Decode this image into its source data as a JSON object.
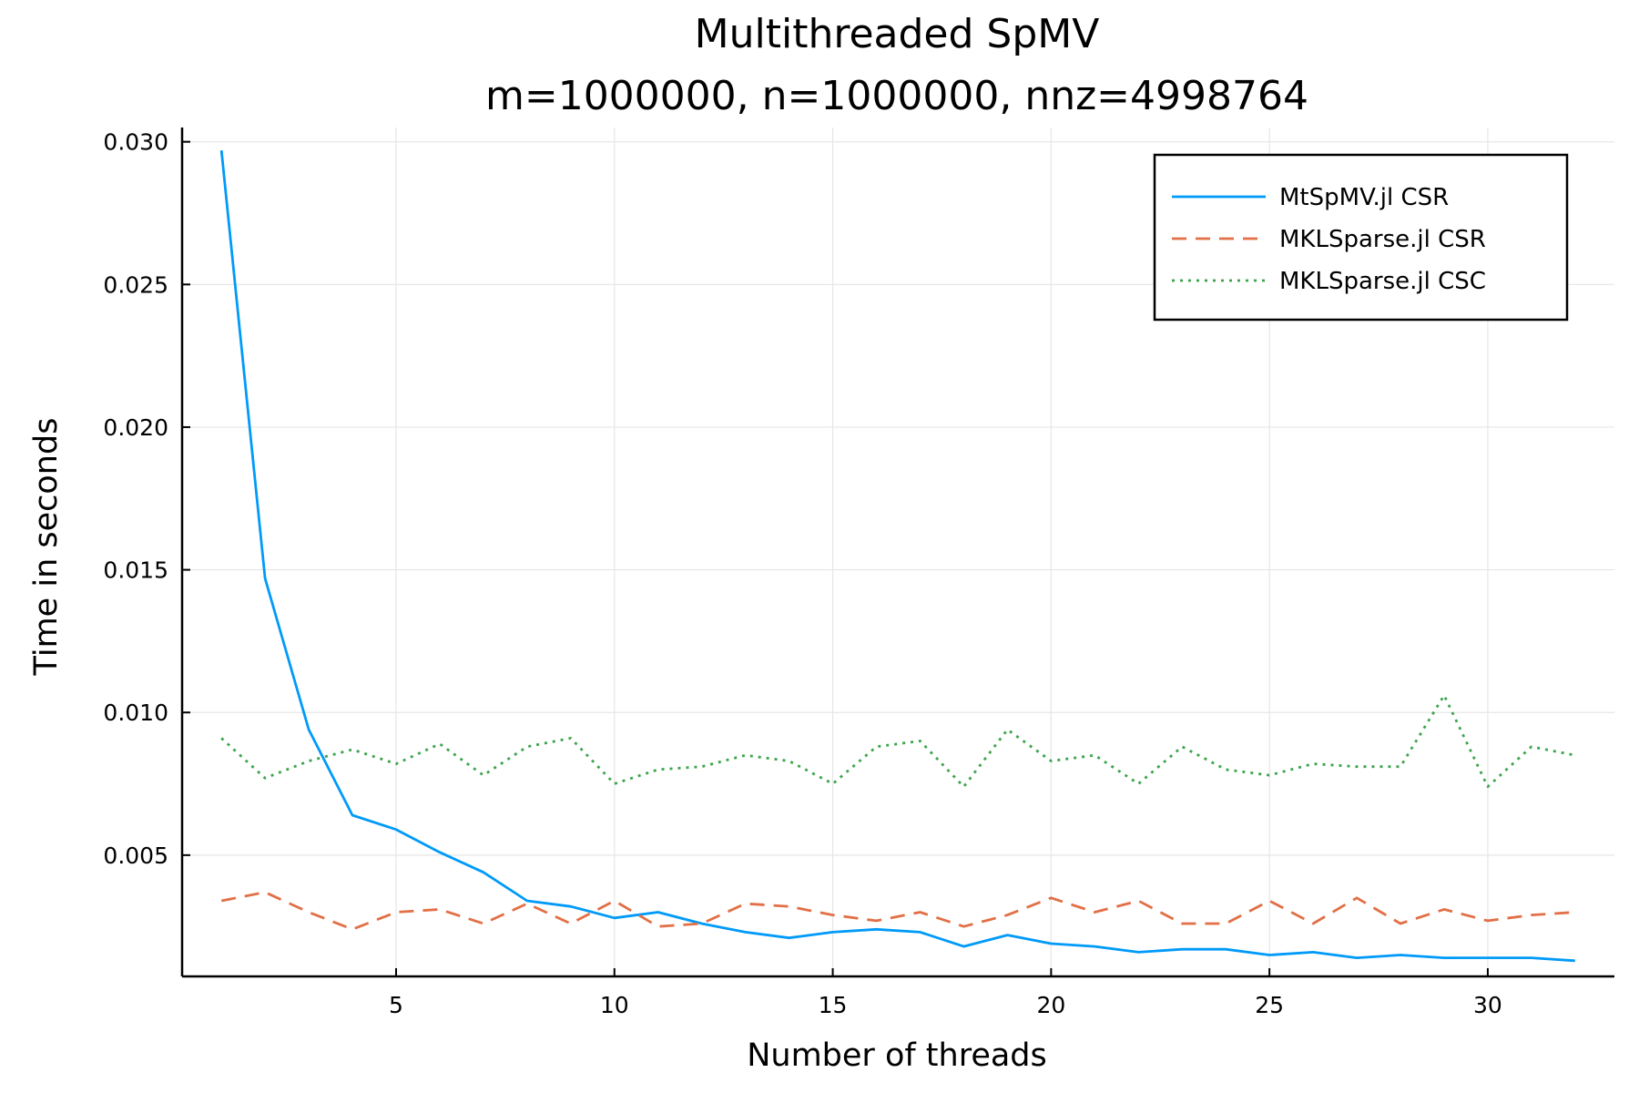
{
  "chart_data": {
    "type": "line",
    "title": "Multithreaded SpMV",
    "subtitle": "m=1000000, n=1000000, nnz=4998764",
    "xlabel": "Number of threads",
    "ylabel": "Time in seconds",
    "xlim": [
      0.1,
      32.9
    ],
    "ylim": [
      0.00075,
      0.0305
    ],
    "xticks": [
      5,
      10,
      15,
      20,
      25,
      30
    ],
    "yticks": [
      0.005,
      0.01,
      0.015,
      0.02,
      0.025,
      0.03
    ],
    "xtick_labels": [
      "5",
      "10",
      "15",
      "20",
      "25",
      "30"
    ],
    "ytick_labels": [
      "0.005",
      "0.010",
      "0.015",
      "0.020",
      "0.025",
      "0.030"
    ],
    "grid": true,
    "legend_position": "top-right",
    "x": [
      1,
      2,
      3,
      4,
      5,
      6,
      7,
      8,
      9,
      10,
      11,
      12,
      13,
      14,
      15,
      16,
      17,
      18,
      19,
      20,
      21,
      22,
      23,
      24,
      25,
      26,
      27,
      28,
      29,
      30,
      31,
      32
    ],
    "series": [
      {
        "name": "MtSpMV.jl CSR",
        "style": "solid",
        "color": "#009af9",
        "values": [
          0.0297,
          0.0147,
          0.0094,
          0.0064,
          0.0059,
          0.0051,
          0.0044,
          0.0034,
          0.0032,
          0.0028,
          0.003,
          0.0026,
          0.0023,
          0.0021,
          0.0023,
          0.0024,
          0.0023,
          0.0018,
          0.0022,
          0.0019,
          0.0018,
          0.0016,
          0.0017,
          0.0017,
          0.0015,
          0.0016,
          0.0014,
          0.0015,
          0.0014,
          0.0014,
          0.0014,
          0.0013
        ]
      },
      {
        "name": "MKLSparse.jl CSR",
        "style": "dashed",
        "color": "#e26f46",
        "values": [
          0.0034,
          0.0037,
          0.003,
          0.0024,
          0.003,
          0.0031,
          0.0026,
          0.0033,
          0.0026,
          0.0034,
          0.0025,
          0.0026,
          0.0033,
          0.0032,
          0.0029,
          0.0027,
          0.003,
          0.0025,
          0.0029,
          0.0035,
          0.003,
          0.0034,
          0.0026,
          0.0026,
          0.0034,
          0.0026,
          0.0035,
          0.0026,
          0.0031,
          0.0027,
          0.0029,
          0.003
        ]
      },
      {
        "name": "MKLSparse.jl CSC",
        "style": "dotted",
        "color": "#3da44d",
        "values": [
          0.0091,
          0.0077,
          0.0083,
          0.0087,
          0.0082,
          0.0089,
          0.0078,
          0.0088,
          0.0091,
          0.0075,
          0.008,
          0.0081,
          0.0085,
          0.0083,
          0.0075,
          0.0088,
          0.009,
          0.0074,
          0.0094,
          0.0083,
          0.0085,
          0.0075,
          0.0088,
          0.008,
          0.0078,
          0.0082,
          0.0081,
          0.0081,
          0.0106,
          0.0074,
          0.0088,
          0.0085
        ]
      }
    ]
  }
}
